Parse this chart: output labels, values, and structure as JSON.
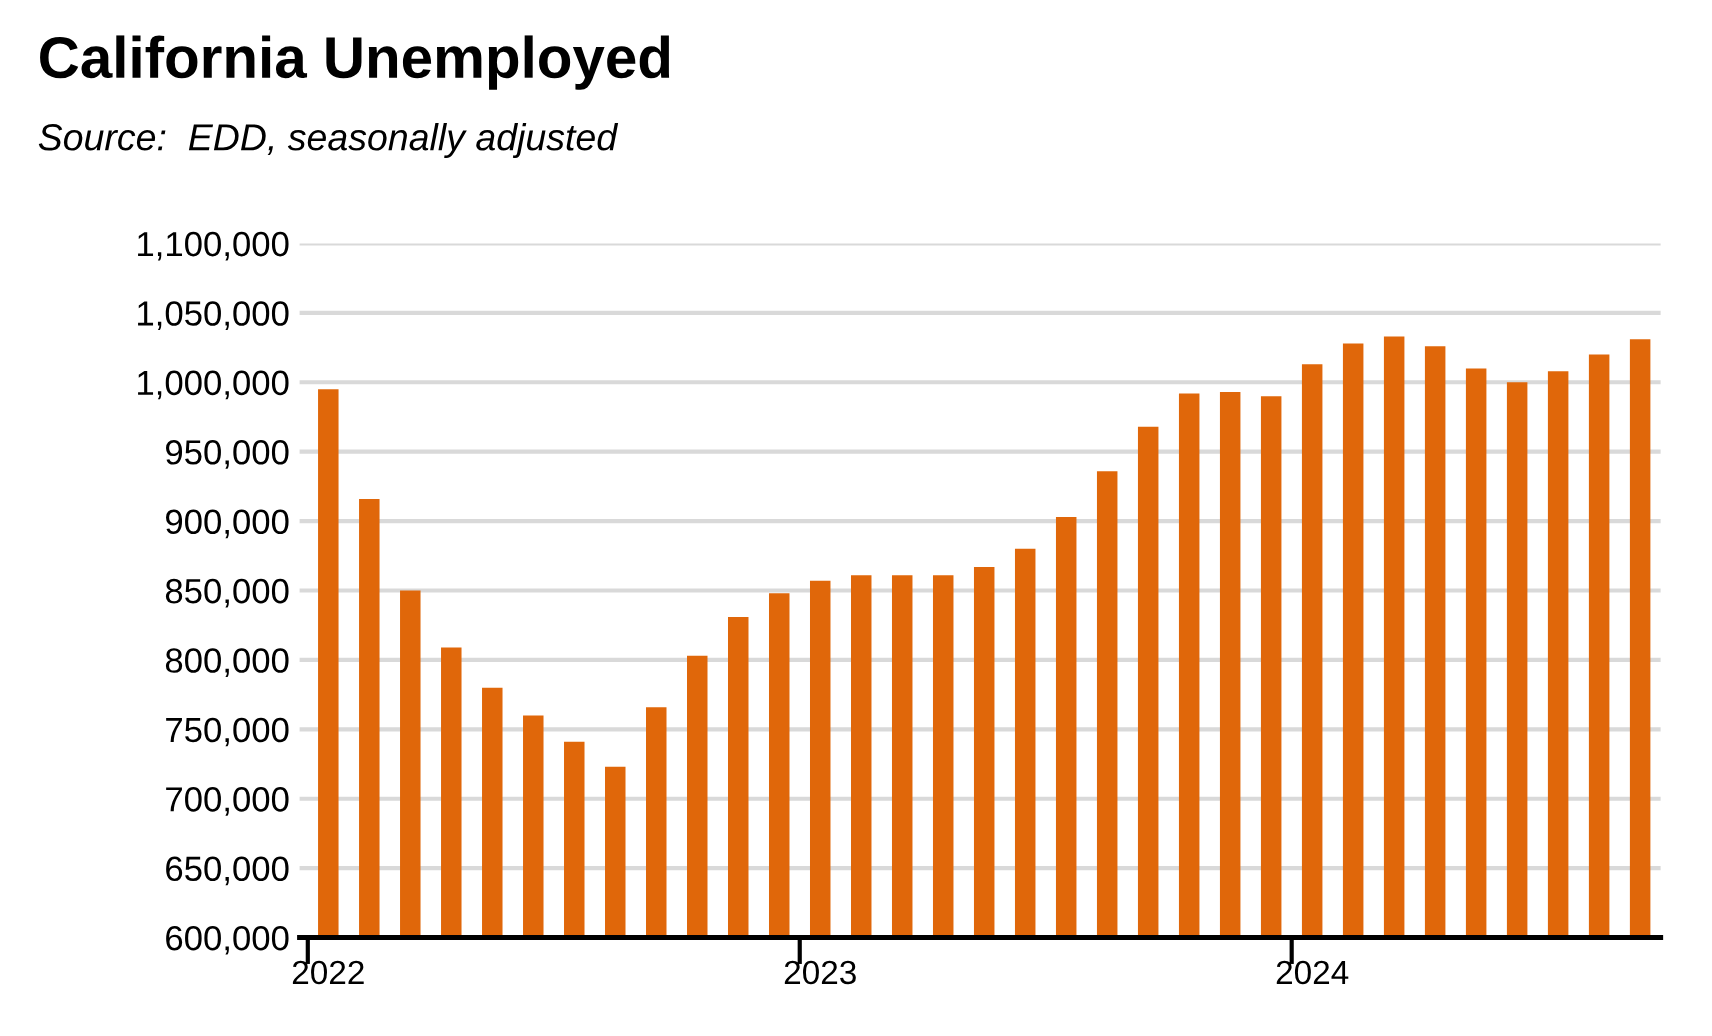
{
  "chart_data": {
    "type": "bar",
    "title": "California Unemployed",
    "subtitle": "Source:  EDD, seasonally adjusted",
    "categories": [
      "2022",
      null,
      null,
      null,
      null,
      null,
      null,
      null,
      null,
      null,
      null,
      null,
      "2023",
      null,
      null,
      null,
      null,
      null,
      null,
      null,
      null,
      null,
      null,
      null,
      "2024",
      null,
      null,
      null,
      null,
      null,
      null,
      null,
      null
    ],
    "values": [
      995000,
      916000,
      850000,
      809000,
      780000,
      760000,
      741000,
      723000,
      766000,
      803000,
      831000,
      848000,
      857000,
      861000,
      861000,
      861000,
      867000,
      880000,
      903000,
      936000,
      968000,
      992000,
      993000,
      990000,
      1013000,
      1028000,
      1033000,
      1026000,
      1010000,
      1000000,
      1008000,
      1020000,
      1031000
    ],
    "color": "#e0670a",
    "ylim": [
      600000,
      1100000
    ],
    "yticks": [
      {
        "value": 600000,
        "label": "600,000"
      },
      {
        "value": 650000,
        "label": "650,000"
      },
      {
        "value": 700000,
        "label": "700,000"
      },
      {
        "value": 750000,
        "label": "750,000"
      },
      {
        "value": 800000,
        "label": "800,000"
      },
      {
        "value": 850000,
        "label": "850,000"
      },
      {
        "value": 900000,
        "label": "900,000"
      },
      {
        "value": 950000,
        "label": "950,000"
      },
      {
        "value": 1000000,
        "label": "1,000,000"
      },
      {
        "value": 1050000,
        "label": "1,050,000"
      },
      {
        "value": 1100000,
        "label": "1,100,000"
      }
    ],
    "grid": "y"
  }
}
